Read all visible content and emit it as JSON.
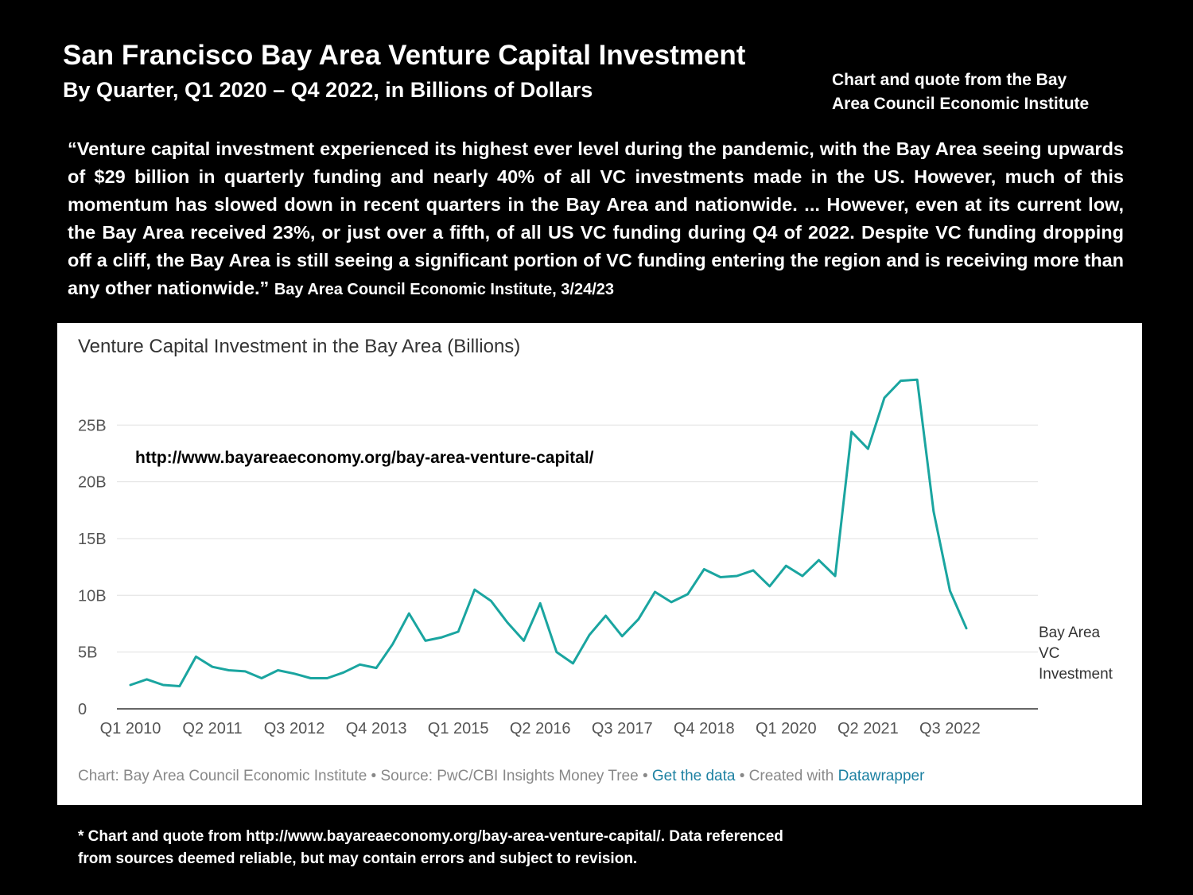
{
  "slide": {
    "title": "San Francisco Bay Area Venture Capital Investment",
    "subtitle": "By Quarter, Q1 2020 – Q4 2022, in Billions of Dollars",
    "credit_line1": "Chart and quote from the Bay",
    "credit_line2": "Area Council Economic Institute",
    "quote": "“Venture capital investment experienced its highest ever level during the pandemic, with the Bay Area seeing upwards of $29 billion in quarterly funding and nearly 40% of all VC investments made in the US. However, much of this momentum has slowed down in recent quarters in the Bay Area and nationwide. ... However, even at its current low, the Bay Area received 23%, or just over a fifth, of all US VC funding during Q4 of 2022. Despite VC funding dropping off a cliff, the Bay Area is still seeing a significant portion of VC funding entering the region and is receiving more than any other nationwide.”",
    "quote_attribution": "Bay Area Council Economic Institute, 3/24/23",
    "disclaimer": "* Chart and quote from http://www.bayareaeconomy.org/bay-area-venture-capital/. Data referenced from sources deemed reliable, but may contain errors and subject to revision."
  },
  "panel": {
    "url_note": "http://www.bayareaeconomy.org/bay-area-venture-capital/",
    "footer_chart": "Chart: Bay Area Council Economic Institute • Source: PwC/CBI Insights Money Tree • ",
    "footer_get_data": "Get the data",
    "footer_created": " • Created with ",
    "footer_datawrapper": "Datawrapper"
  },
  "colors": {
    "background": "#000000",
    "panel": "#ffffff",
    "line": "#1aa5a0",
    "grid": "#e0e0e0",
    "link": "#1d81a2"
  },
  "chart_data": {
    "type": "line",
    "title": "Venture Capital Investment in the Bay Area (Billions)",
    "xlabel": "",
    "ylabel": "",
    "ylim": [
      0,
      30
    ],
    "y_ticks": [
      0,
      5,
      10,
      15,
      20,
      25
    ],
    "y_tick_labels": [
      "0",
      "5B",
      "10B",
      "15B",
      "20B",
      "25B"
    ],
    "x_tick_labels": [
      "Q1 2010",
      "Q2 2011",
      "Q3 2012",
      "Q4 2013",
      "Q1 2015",
      "Q2 2016",
      "Q3 2017",
      "Q4 2018",
      "Q1 2020",
      "Q2 2021",
      "Q3 2022"
    ],
    "x_tick_every": 5,
    "grid": true,
    "series_label": [
      "Bay Area",
      "VC",
      "Investment"
    ],
    "series": [
      {
        "name": "Bay Area VC Investment",
        "values": [
          2.1,
          2.6,
          2.1,
          2.0,
          4.6,
          3.7,
          3.4,
          3.3,
          2.7,
          3.4,
          3.1,
          2.7,
          2.7,
          3.2,
          3.9,
          3.6,
          5.7,
          8.4,
          6.0,
          6.3,
          6.8,
          10.5,
          9.5,
          7.6,
          6.0,
          9.3,
          5.0,
          4.0,
          6.5,
          8.2,
          6.4,
          7.9,
          10.3,
          9.4,
          10.1,
          12.3,
          11.6,
          11.7,
          12.2,
          10.8,
          12.6,
          11.7,
          13.1,
          11.7,
          24.4,
          22.9,
          27.4,
          28.9,
          29.0,
          17.4,
          10.4,
          7.1
        ]
      }
    ]
  }
}
